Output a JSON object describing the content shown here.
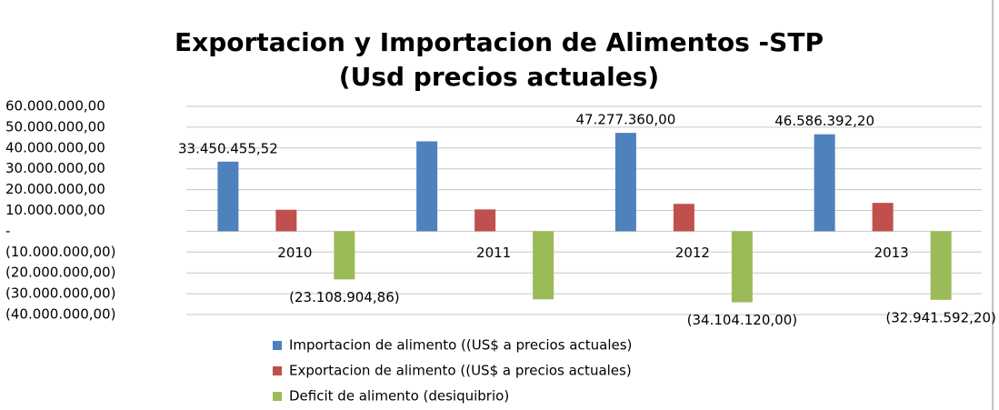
{
  "chart_data": {
    "type": "bar",
    "title": "Exportacion y Importacion de Alimentos -STP",
    "subtitle": "(Usd precios actuales)",
    "categories": [
      "2010",
      "2011",
      "2012",
      "2013"
    ],
    "series": [
      {
        "name": "Importacion de alimento ((US$ a precios actuales)",
        "color": "#4f81bd",
        "values": [
          33450455.52,
          43200000,
          47277360.0,
          46586392.2
        ],
        "value_labels": [
          "33.450.455,52",
          null,
          "47.277.360,00",
          "46.586.392,20"
        ]
      },
      {
        "name": "Exportacion de alimento ((US$ a precios actuales)",
        "color": "#c0504d",
        "values": [
          10341550.66,
          10500000,
          13173240.0,
          13644800.0
        ]
      },
      {
        "name": "Deficit de alimento (desiquibrio)",
        "color": "#9bbb59",
        "values": [
          -23108904.86,
          -32700000,
          -34104120.0,
          -32941592.2
        ],
        "value_labels": [
          "(23.108.904,86)",
          null,
          "(34.104.120,00)",
          "(32.941.592,20)"
        ]
      }
    ],
    "ylim": [
      -40000000,
      60000000
    ],
    "yticks": [
      {
        "value": 60000000,
        "label": "60.000.000,00"
      },
      {
        "value": 50000000,
        "label": "50.000.000,00"
      },
      {
        "value": 40000000,
        "label": "40.000.000,00"
      },
      {
        "value": 30000000,
        "label": "30.000.000,00"
      },
      {
        "value": 20000000,
        "label": "20.000.000,00"
      },
      {
        "value": 10000000,
        "label": "10.000.000,00"
      },
      {
        "value": 0,
        "label": "-"
      },
      {
        "value": -10000000,
        "label": "(10.000.000,00)"
      },
      {
        "value": -20000000,
        "label": "(20.000.000,00)"
      },
      {
        "value": -30000000,
        "label": "(30.000.000,00)"
      },
      {
        "value": -40000000,
        "label": "(40.000.000,00)"
      }
    ],
    "grid": true,
    "legend": "bottom"
  }
}
